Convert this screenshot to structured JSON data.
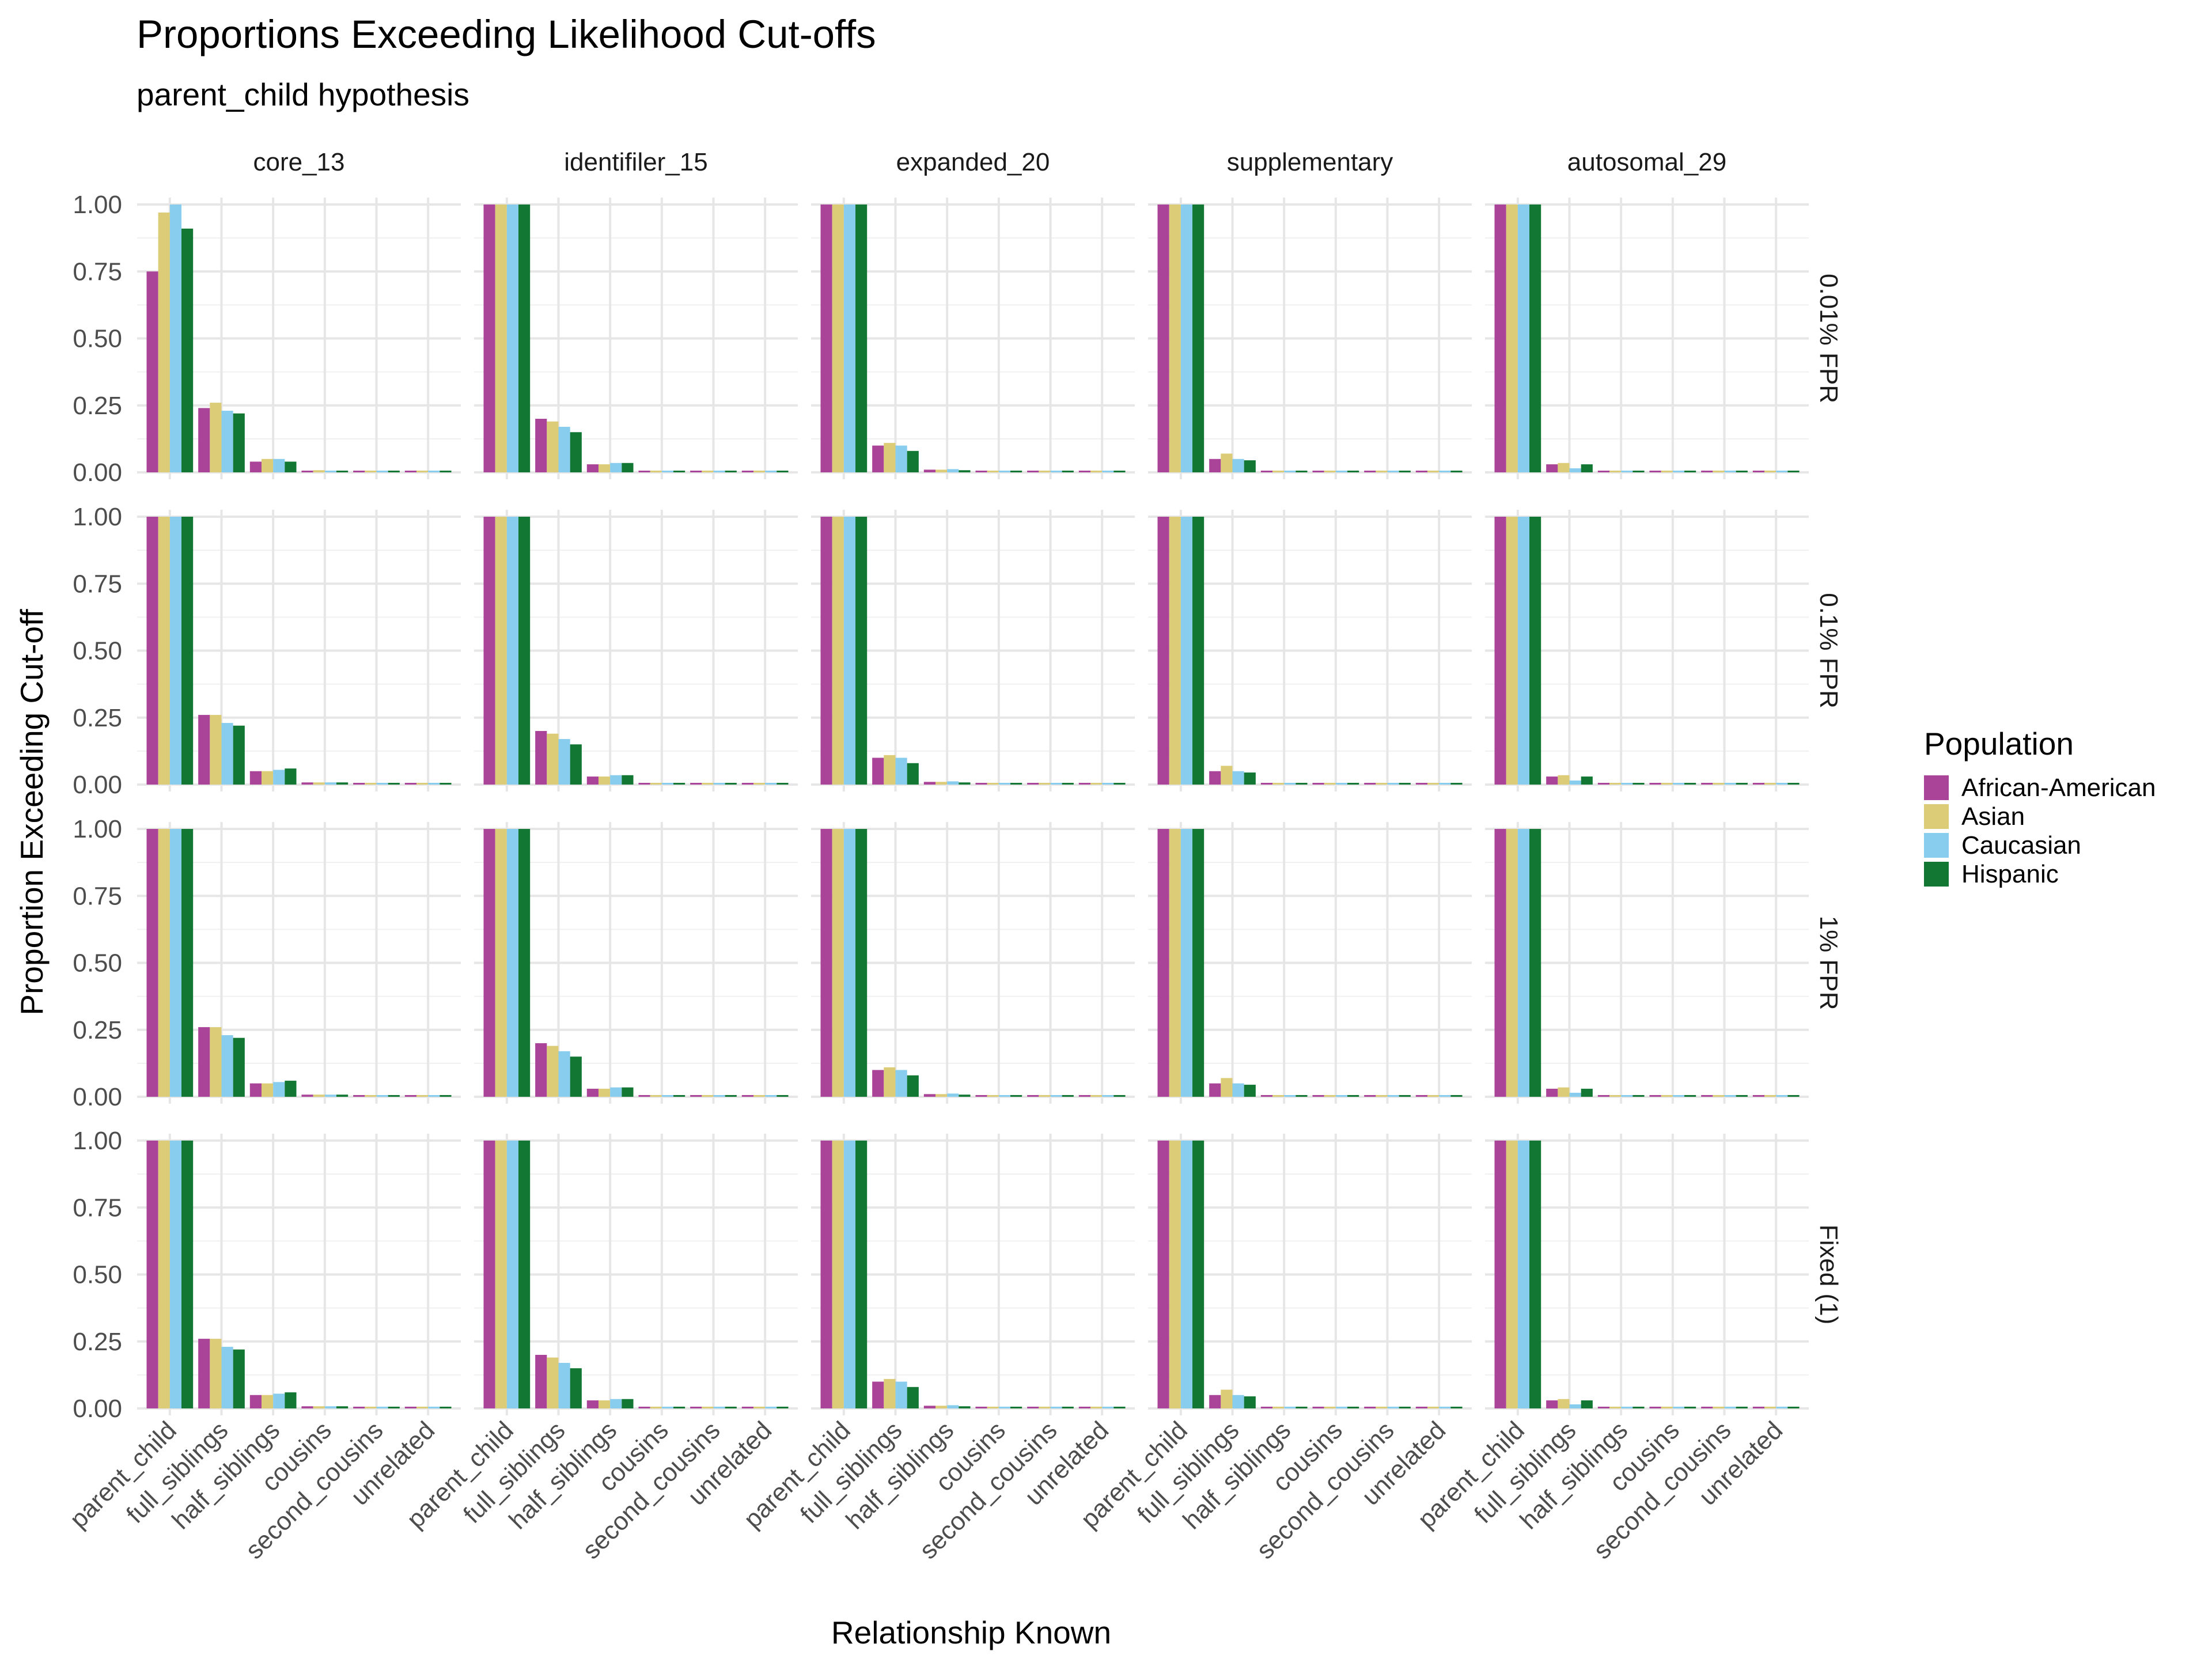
{
  "chart_data": {
    "type": "bar",
    "title": "Proportions Exceeding Likelihood Cut-offs",
    "subtitle": "parent_child hypothesis",
    "xlabel": "Relationship Known",
    "ylabel": "Proportion Exceeding Cut-off",
    "ylim": [
      0,
      1
    ],
    "yticks": [
      "0.00",
      "0.25",
      "0.50",
      "0.75",
      "1.00"
    ],
    "grid": true,
    "categories": [
      "parent_child",
      "full_siblings",
      "half_siblings",
      "cousins",
      "second_cousins",
      "unrelated"
    ],
    "column_facets": [
      "core_13",
      "identifiler_15",
      "expanded_20",
      "supplementary",
      "autosomal_29"
    ],
    "row_facets": [
      "0.01% FPR",
      "0.1% FPR",
      "1% FPR",
      "Fixed (1)"
    ],
    "legend": {
      "title": "Population",
      "placement": "right",
      "items": [
        "African-American",
        "Asian",
        "Caucasian",
        "Hispanic"
      ],
      "colors": [
        "#AA4499",
        "#DDCC77",
        "#88CCEE",
        "#117733"
      ]
    },
    "panels": [
      [
        [
          [
            0.75,
            0.97,
            1.0,
            0.91
          ],
          [
            0.24,
            0.26,
            0.23,
            0.22
          ],
          [
            0.04,
            0.05,
            0.05,
            0.04
          ],
          [
            0.005,
            0.008,
            0.006,
            0.005
          ],
          [
            0.003,
            0.004,
            0.003,
            0.003
          ],
          [
            0.002,
            0.002,
            0.002,
            0.002
          ]
        ],
        [
          [
            1,
            1,
            1,
            1
          ],
          [
            0.2,
            0.19,
            0.17,
            0.15
          ],
          [
            0.03,
            0.03,
            0.035,
            0.035
          ],
          [
            0.003,
            0.003,
            0.003,
            0.003
          ],
          [
            0.002,
            0.002,
            0.002,
            0.002
          ],
          [
            0.002,
            0.002,
            0.002,
            0.002
          ]
        ],
        [
          [
            1,
            1,
            1,
            1
          ],
          [
            0.1,
            0.11,
            0.1,
            0.08
          ],
          [
            0.01,
            0.01,
            0.012,
            0.008
          ],
          [
            0.002,
            0.002,
            0.002,
            0.002
          ],
          [
            0.002,
            0.002,
            0.002,
            0.002
          ],
          [
            0.002,
            0.002,
            0.002,
            0.002
          ]
        ],
        [
          [
            1,
            1,
            1,
            1
          ],
          [
            0.05,
            0.07,
            0.05,
            0.045
          ],
          [
            0.005,
            0.006,
            0.005,
            0.004
          ],
          [
            0.002,
            0.002,
            0.002,
            0.002
          ],
          [
            0.002,
            0.002,
            0.002,
            0.002
          ],
          [
            0.002,
            0.002,
            0.002,
            0.002
          ]
        ],
        [
          [
            1,
            1,
            1,
            1
          ],
          [
            0.03,
            0.035,
            0.015,
            0.03
          ],
          [
            0.003,
            0.003,
            0.003,
            0.003
          ],
          [
            0.002,
            0.002,
            0.002,
            0.002
          ],
          [
            0.002,
            0.002,
            0.002,
            0.002
          ],
          [
            0.002,
            0.002,
            0.002,
            0.002
          ]
        ]
      ],
      [
        [
          [
            1,
            1,
            1,
            1
          ],
          [
            0.26,
            0.26,
            0.23,
            0.22
          ],
          [
            0.05,
            0.05,
            0.055,
            0.06
          ],
          [
            0.008,
            0.008,
            0.008,
            0.008
          ],
          [
            0.005,
            0.005,
            0.005,
            0.005
          ],
          [
            0.003,
            0.003,
            0.003,
            0.003
          ]
        ],
        [
          [
            1,
            1,
            1,
            1
          ],
          [
            0.2,
            0.19,
            0.17,
            0.15
          ],
          [
            0.03,
            0.03,
            0.035,
            0.035
          ],
          [
            0.004,
            0.004,
            0.004,
            0.004
          ],
          [
            0.003,
            0.003,
            0.003,
            0.003
          ],
          [
            0.003,
            0.003,
            0.003,
            0.003
          ]
        ],
        [
          [
            1,
            1,
            1,
            1
          ],
          [
            0.1,
            0.11,
            0.1,
            0.08
          ],
          [
            0.01,
            0.01,
            0.012,
            0.008
          ],
          [
            0.003,
            0.003,
            0.003,
            0.003
          ],
          [
            0.003,
            0.003,
            0.003,
            0.003
          ],
          [
            0.003,
            0.003,
            0.003,
            0.003
          ]
        ],
        [
          [
            1,
            1,
            1,
            1
          ],
          [
            0.05,
            0.07,
            0.05,
            0.045
          ],
          [
            0.005,
            0.006,
            0.005,
            0.004
          ],
          [
            0.003,
            0.003,
            0.003,
            0.003
          ],
          [
            0.003,
            0.003,
            0.003,
            0.003
          ],
          [
            0.003,
            0.003,
            0.003,
            0.003
          ]
        ],
        [
          [
            1,
            1,
            1,
            1
          ],
          [
            0.03,
            0.035,
            0.015,
            0.03
          ],
          [
            0.003,
            0.003,
            0.003,
            0.003
          ],
          [
            0.003,
            0.003,
            0.003,
            0.003
          ],
          [
            0.003,
            0.003,
            0.003,
            0.003
          ],
          [
            0.003,
            0.003,
            0.003,
            0.003
          ]
        ]
      ],
      [
        [
          [
            1,
            1,
            1,
            1
          ],
          [
            0.26,
            0.26,
            0.23,
            0.22
          ],
          [
            0.05,
            0.05,
            0.055,
            0.06
          ],
          [
            0.008,
            0.008,
            0.008,
            0.008
          ],
          [
            0.005,
            0.005,
            0.005,
            0.005
          ],
          [
            0.003,
            0.003,
            0.003,
            0.003
          ]
        ],
        [
          [
            1,
            1,
            1,
            1
          ],
          [
            0.2,
            0.19,
            0.17,
            0.15
          ],
          [
            0.03,
            0.03,
            0.035,
            0.035
          ],
          [
            0.004,
            0.004,
            0.004,
            0.004
          ],
          [
            0.003,
            0.003,
            0.003,
            0.003
          ],
          [
            0.003,
            0.003,
            0.003,
            0.003
          ]
        ],
        [
          [
            1,
            1,
            1,
            1
          ],
          [
            0.1,
            0.11,
            0.1,
            0.08
          ],
          [
            0.01,
            0.01,
            0.012,
            0.008
          ],
          [
            0.003,
            0.003,
            0.003,
            0.003
          ],
          [
            0.003,
            0.003,
            0.003,
            0.003
          ],
          [
            0.003,
            0.003,
            0.003,
            0.003
          ]
        ],
        [
          [
            1,
            1,
            1,
            1
          ],
          [
            0.05,
            0.07,
            0.05,
            0.045
          ],
          [
            0.005,
            0.006,
            0.005,
            0.004
          ],
          [
            0.003,
            0.003,
            0.003,
            0.003
          ],
          [
            0.003,
            0.003,
            0.003,
            0.003
          ],
          [
            0.003,
            0.003,
            0.003,
            0.003
          ]
        ],
        [
          [
            1,
            1,
            1,
            1
          ],
          [
            0.03,
            0.035,
            0.015,
            0.03
          ],
          [
            0.003,
            0.003,
            0.003,
            0.003
          ],
          [
            0.003,
            0.003,
            0.003,
            0.003
          ],
          [
            0.003,
            0.003,
            0.003,
            0.003
          ],
          [
            0.003,
            0.003,
            0.003,
            0.003
          ]
        ]
      ],
      [
        [
          [
            1,
            1,
            1,
            1
          ],
          [
            0.26,
            0.26,
            0.23,
            0.22
          ],
          [
            0.05,
            0.05,
            0.055,
            0.06
          ],
          [
            0.008,
            0.008,
            0.008,
            0.008
          ],
          [
            0.005,
            0.005,
            0.005,
            0.005
          ],
          [
            0.003,
            0.003,
            0.003,
            0.003
          ]
        ],
        [
          [
            1,
            1,
            1,
            1
          ],
          [
            0.2,
            0.19,
            0.17,
            0.15
          ],
          [
            0.03,
            0.03,
            0.035,
            0.035
          ],
          [
            0.004,
            0.004,
            0.004,
            0.004
          ],
          [
            0.003,
            0.003,
            0.003,
            0.003
          ],
          [
            0.003,
            0.003,
            0.003,
            0.003
          ]
        ],
        [
          [
            1,
            1,
            1,
            1
          ],
          [
            0.1,
            0.11,
            0.1,
            0.08
          ],
          [
            0.01,
            0.01,
            0.012,
            0.008
          ],
          [
            0.003,
            0.003,
            0.003,
            0.003
          ],
          [
            0.003,
            0.003,
            0.003,
            0.003
          ],
          [
            0.003,
            0.003,
            0.003,
            0.003
          ]
        ],
        [
          [
            1,
            1,
            1,
            1
          ],
          [
            0.05,
            0.07,
            0.05,
            0.045
          ],
          [
            0.005,
            0.006,
            0.005,
            0.004
          ],
          [
            0.003,
            0.003,
            0.003,
            0.003
          ],
          [
            0.003,
            0.003,
            0.003,
            0.003
          ],
          [
            0.003,
            0.003,
            0.003,
            0.003
          ]
        ],
        [
          [
            1,
            1,
            1,
            1
          ],
          [
            0.03,
            0.035,
            0.015,
            0.03
          ],
          [
            0.003,
            0.003,
            0.003,
            0.003
          ],
          [
            0.003,
            0.003,
            0.003,
            0.003
          ],
          [
            0.003,
            0.003,
            0.003,
            0.003
          ],
          [
            0.003,
            0.003,
            0.003,
            0.003
          ]
        ]
      ]
    ]
  }
}
